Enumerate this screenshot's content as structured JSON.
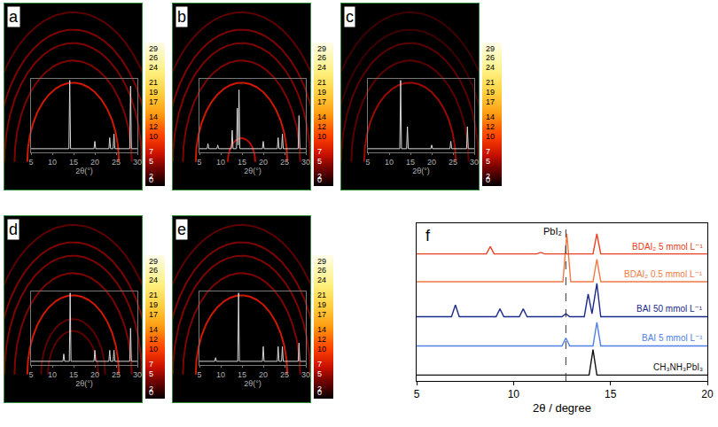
{
  "chart_data": [
    {
      "type": "image",
      "label": "a",
      "xlim": [
        -1.5,
        1.5
      ],
      "ylim": [
        -0.35,
        2.0
      ],
      "tick_labels": false,
      "rings": [
        {
          "radius": 1.0,
          "intensity": 7
        },
        {
          "radius": 1.28,
          "intensity": 4
        },
        {
          "radius": 1.5,
          "intensity": 4
        },
        {
          "radius": 1.67,
          "intensity": 4
        },
        {
          "radius": 1.89,
          "intensity": 3
        }
      ],
      "colorbar": {
        "range": [
          0,
          29
        ],
        "ticks": [
          0,
          2,
          5,
          7,
          10,
          12,
          14,
          17,
          19,
          21,
          24,
          26,
          29
        ]
      },
      "inset": {
        "type": "line",
        "x_label": "2θ(°)",
        "xlim": [
          5,
          30
        ],
        "xticks": [
          5,
          10,
          15,
          20,
          25,
          30
        ],
        "ylim": [
          0,
          1
        ],
        "tick_labels": "x",
        "x": [
          5,
          13.9,
          14.1,
          14.3,
          19.8,
          20,
          20.2,
          23.3,
          23.5,
          23.7,
          24.3,
          24.5,
          24.7,
          28.2,
          28.4,
          28.6,
          30
        ],
        "values": [
          0.05,
          0.05,
          0.98,
          0.05,
          0.05,
          0.15,
          0.05,
          0.05,
          0.2,
          0.05,
          0.05,
          0.25,
          0.05,
          0.05,
          0.9,
          0.05,
          0.05
        ]
      }
    },
    {
      "type": "image",
      "label": "b",
      "xlim": [
        -1.5,
        1.5
      ],
      "ylim": [
        -0.35,
        2.0
      ],
      "tick_labels": false,
      "rings": [
        {
          "radius": 0.3,
          "intensity": 6
        },
        {
          "radius": 1.0,
          "intensity": 7
        },
        {
          "radius": 1.28,
          "intensity": 4
        },
        {
          "radius": 1.5,
          "intensity": 4
        },
        {
          "radius": 1.67,
          "intensity": 4
        },
        {
          "radius": 1.89,
          "intensity": 3
        }
      ],
      "colorbar": {
        "range": [
          0,
          29
        ],
        "ticks": [
          0,
          2,
          5,
          7,
          10,
          12,
          14,
          17,
          19,
          21,
          24,
          26,
          29
        ]
      },
      "inset": {
        "type": "line",
        "x_label": "2θ(°)",
        "xlim": [
          5,
          30
        ],
        "xticks": [
          5,
          10,
          15,
          20,
          25,
          30
        ],
        "ylim": [
          0,
          1
        ],
        "tick_labels": "x",
        "x": [
          5,
          6.8,
          7,
          7.2,
          9.1,
          9.3,
          9.5,
          12.5,
          12.7,
          12.9,
          13.7,
          13.9,
          14.1,
          14.3,
          14.5,
          19.8,
          20,
          20.2,
          23.3,
          23.5,
          23.7,
          24.3,
          24.5,
          24.7,
          28.2,
          28.4,
          28.6,
          30
        ],
        "values": [
          0.05,
          0.05,
          0.12,
          0.05,
          0.05,
          0.1,
          0.05,
          0.05,
          0.3,
          0.05,
          0.05,
          0.6,
          0.1,
          0.85,
          0.05,
          0.05,
          0.15,
          0.05,
          0.05,
          0.2,
          0.05,
          0.05,
          0.25,
          0.05,
          0.05,
          0.5,
          0.05,
          0.05
        ]
      }
    },
    {
      "type": "image",
      "label": "c",
      "xlim": [
        -1.5,
        1.5
      ],
      "ylim": [
        -0.35,
        2.0
      ],
      "tick_labels": false,
      "rings": [
        {
          "radius": 1.0,
          "intensity": 5
        },
        {
          "radius": 1.28,
          "intensity": 3
        },
        {
          "radius": 1.5,
          "intensity": 3
        },
        {
          "radius": 1.67,
          "intensity": 2
        },
        {
          "radius": 1.89,
          "intensity": 2
        }
      ],
      "colorbar": {
        "range": [
          0,
          29
        ],
        "ticks": [
          0,
          2,
          5,
          7,
          10,
          12,
          14,
          17,
          19,
          21,
          24,
          26,
          29
        ]
      },
      "inset": {
        "type": "line",
        "x_label": "2θ(°)",
        "xlim": [
          5,
          30
        ],
        "xticks": [
          5,
          10,
          15,
          20,
          25,
          30
        ],
        "ylim": [
          0,
          1
        ],
        "tick_labels": "x",
        "x": [
          5,
          12.5,
          12.7,
          12.9,
          14.1,
          14.3,
          14.5,
          19.8,
          20,
          20.2,
          24.3,
          24.5,
          24.7,
          28.2,
          28.4,
          28.6,
          30
        ],
        "values": [
          0.05,
          0.05,
          0.98,
          0.05,
          0.05,
          0.35,
          0.05,
          0.05,
          0.1,
          0.05,
          0.05,
          0.15,
          0.05,
          0.05,
          0.35,
          0.05,
          0.05
        ]
      }
    },
    {
      "type": "image",
      "label": "d",
      "xlim": [
        -1.5,
        1.5
      ],
      "ylim": [
        -0.35,
        2.0
      ],
      "tick_labels": false,
      "rings": [
        {
          "radius": 0.55,
          "intensity": 3
        },
        {
          "radius": 0.7,
          "intensity": 3
        },
        {
          "radius": 1.0,
          "intensity": 7
        },
        {
          "radius": 1.28,
          "intensity": 4
        },
        {
          "radius": 1.5,
          "intensity": 4
        },
        {
          "radius": 1.67,
          "intensity": 4
        },
        {
          "radius": 1.89,
          "intensity": 3
        }
      ],
      "colorbar": {
        "range": [
          0,
          29
        ],
        "ticks": [
          0,
          2,
          5,
          7,
          10,
          12,
          14,
          17,
          19,
          21,
          24,
          26,
          29
        ]
      },
      "inset": {
        "type": "line",
        "x_label": "2θ(°)",
        "xlim": [
          5,
          30
        ],
        "xticks": [
          5,
          10,
          15,
          20,
          25,
          30
        ],
        "ylim": [
          0,
          1
        ],
        "tick_labels": "x",
        "x": [
          5,
          12.5,
          12.7,
          12.9,
          14,
          14.2,
          14.4,
          19.8,
          20,
          20.2,
          23.3,
          23.5,
          23.7,
          24.3,
          24.5,
          24.7,
          28.2,
          28.4,
          28.6,
          30
        ],
        "values": [
          0.05,
          0.05,
          0.15,
          0.05,
          0.05,
          0.98,
          0.05,
          0.05,
          0.2,
          0.05,
          0.05,
          0.2,
          0.05,
          0.05,
          0.2,
          0.05,
          0.05,
          0.5,
          0.05,
          0.05
        ]
      }
    },
    {
      "type": "image",
      "label": "e",
      "xlim": [
        -1.5,
        1.5
      ],
      "ylim": [
        -0.35,
        2.0
      ],
      "tick_labels": false,
      "rings": [
        {
          "radius": 1.0,
          "intensity": 7
        },
        {
          "radius": 1.28,
          "intensity": 4
        },
        {
          "radius": 1.5,
          "intensity": 4
        },
        {
          "radius": 1.67,
          "intensity": 4
        },
        {
          "radius": 1.89,
          "intensity": 3
        }
      ],
      "colorbar": {
        "range": [
          0,
          29
        ],
        "ticks": [
          0,
          2,
          5,
          7,
          10,
          12,
          14,
          17,
          19,
          21,
          24,
          26,
          29
        ]
      },
      "inset": {
        "type": "line",
        "x_label": "2θ(°)",
        "xlim": [
          5,
          30
        ],
        "xticks": [
          5,
          10,
          15,
          20,
          25,
          30
        ],
        "ylim": [
          0,
          1
        ],
        "tick_labels": "x",
        "x": [
          5,
          8.6,
          8.8,
          9,
          14,
          14.2,
          14.4,
          19.8,
          20,
          20.2,
          23.3,
          23.5,
          23.7,
          24.3,
          24.5,
          24.7,
          28.2,
          28.4,
          28.6,
          30
        ],
        "values": [
          0.05,
          0.05,
          0.1,
          0.05,
          0.05,
          0.98,
          0.05,
          0.05,
          0.25,
          0.05,
          0.05,
          0.25,
          0.05,
          0.05,
          0.25,
          0.05,
          0.05,
          0.3,
          0.05,
          0.05
        ]
      }
    },
    {
      "type": "line",
      "label": "f",
      "x_label": "2θ / degree",
      "xlim": [
        5,
        20
      ],
      "xticks": [
        5,
        10,
        15,
        20
      ],
      "ylim": [
        -0.2,
        5.2
      ],
      "tick_labels": "x",
      "reference_line": {
        "x": 12.7,
        "label": "PbI₂",
        "line_style": "dashed"
      },
      "series": [
        {
          "name": "CH₃NH₃PbI₃",
          "color": "#111111",
          "x": [
            5,
            13.9,
            14.1,
            14.3,
            20
          ],
          "values": [
            0,
            0,
            0.87,
            0,
            0
          ]
        },
        {
          "name": "BAI 5 mmol L⁻¹",
          "color": "#4f7fe6",
          "x": [
            5,
            12.5,
            12.7,
            12.9,
            14.1,
            14.3,
            14.5,
            20
          ],
          "values": [
            1,
            1,
            1.27,
            1,
            1,
            1.81,
            1,
            1
          ]
        },
        {
          "name": "BAI 50 mmol L⁻¹",
          "color": "#1c2a8a",
          "x": [
            5,
            6.8,
            7,
            7.2,
            9.1,
            9.3,
            9.5,
            10.3,
            10.5,
            10.7,
            12.5,
            12.7,
            12.9,
            13.65,
            13.85,
            14.05,
            14.3,
            14.5,
            20
          ],
          "values": [
            2,
            2,
            2.4,
            2,
            2,
            2.27,
            2,
            2,
            2.27,
            2,
            2,
            2.1,
            2,
            2,
            2.78,
            2.1,
            3.14,
            2,
            2
          ]
        },
        {
          "name": "BDAI₂ 0.5 mmol L⁻¹",
          "color": "#f07a45",
          "x": [
            5,
            12.55,
            12.75,
            12.95,
            14.1,
            14.3,
            14.5,
            20
          ],
          "values": [
            3.2,
            3.2,
            4.84,
            3.2,
            3.2,
            3.97,
            3.2,
            3.2
          ]
        },
        {
          "name": "BDAI₂ 5 mmol L⁻¹",
          "color": "#e84020",
          "x": [
            5,
            8.6,
            8.8,
            9,
            11.2,
            11.4,
            11.6,
            14.1,
            14.3,
            14.5,
            20
          ],
          "values": [
            4.15,
            4.15,
            4.4,
            4.15,
            4.15,
            4.2,
            4.15,
            4.15,
            4.84,
            4.15,
            4.15
          ]
        }
      ]
    }
  ]
}
